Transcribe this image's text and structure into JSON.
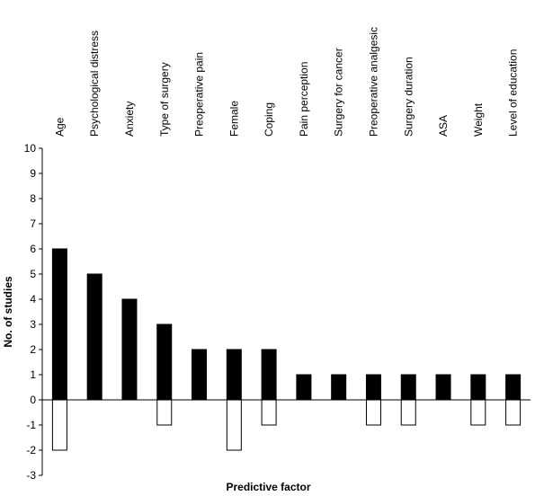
{
  "chart_data": {
    "type": "bar",
    "title": "",
    "xlabel": "Predictive factor",
    "ylabel": "No. of studies",
    "ylim": [
      -3,
      10
    ],
    "yticks": [
      -3,
      -2,
      -1,
      0,
      1,
      2,
      3,
      4,
      5,
      6,
      7,
      8,
      9,
      10
    ],
    "grid": false,
    "legend": "none",
    "categories": [
      "Age",
      "Psychological distress",
      "Anxiety",
      "Type of surgery",
      "Preoperative pain",
      "Female",
      "Coping",
      "Pain perception",
      "Surgery for cancer",
      "Preoperative analgesic",
      "Surgery duration",
      "ASA",
      "Weight",
      "Level of education"
    ],
    "series": [
      {
        "color": "#000000",
        "values": [
          6,
          5,
          4,
          3,
          2,
          2,
          2,
          1,
          1,
          1,
          1,
          1,
          1,
          1
        ]
      },
      {
        "color": "#ffffff",
        "values": [
          -2,
          0,
          0,
          -1,
          0,
          -2,
          -1,
          0,
          0,
          -1,
          -1,
          0,
          -1,
          -1
        ]
      }
    ]
  }
}
